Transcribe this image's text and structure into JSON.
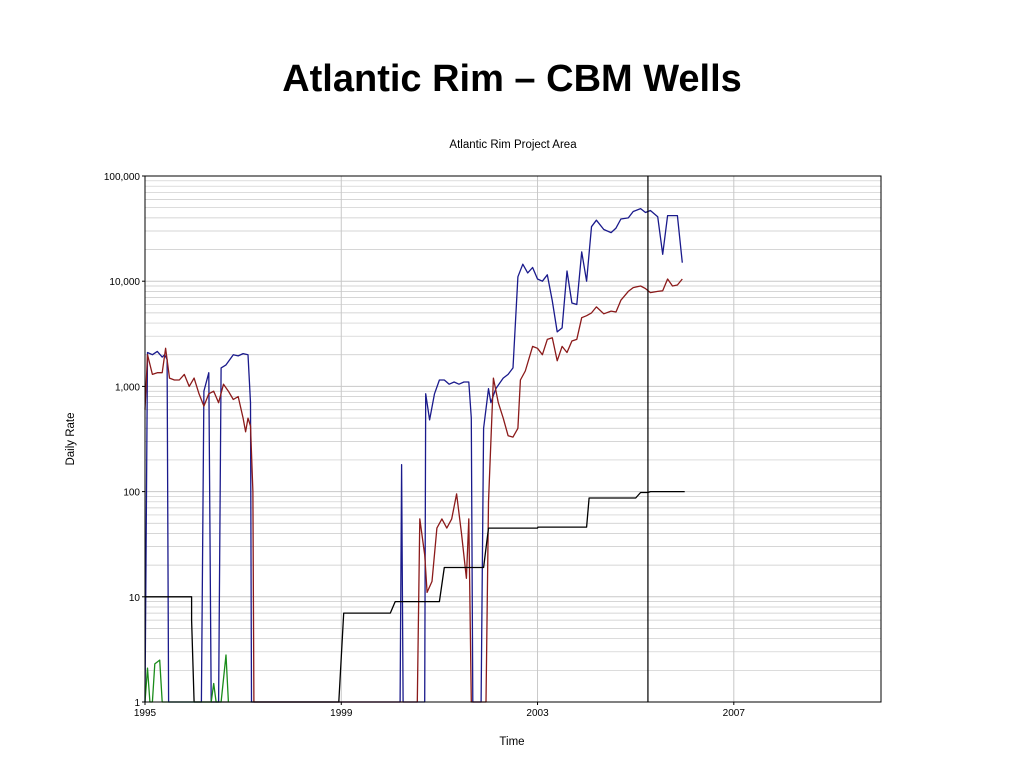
{
  "slide": {
    "title": "Atlantic Rim – CBM Wells"
  },
  "chart_data": {
    "type": "line",
    "title": "Atlantic Rim Project Area",
    "xlabel": "Time",
    "ylabel": "Daily Rate",
    "yscale": "log",
    "xlim": [
      1995,
      2010
    ],
    "ylim": [
      1,
      100000
    ],
    "xticks": [
      "1995",
      "1999",
      "2003",
      "2007"
    ],
    "yticks": [
      "1",
      "10",
      "100",
      "1,000",
      "10,000",
      "100,000"
    ],
    "grid": true,
    "legend": "none",
    "marker_line": {
      "x": 2005.25
    },
    "series": [
      {
        "color": "#1a1a8c",
        "points": [
          [
            1995.0,
            1
          ],
          [
            1995.05,
            2100
          ],
          [
            1995.15,
            2000
          ],
          [
            1995.25,
            2150
          ],
          [
            1995.35,
            1900
          ],
          [
            1995.4,
            2000
          ],
          [
            1995.45,
            1800
          ],
          [
            1995.48,
            1
          ],
          [
            1996.15,
            1
          ],
          [
            1996.2,
            900
          ],
          [
            1996.3,
            1350
          ],
          [
            1996.35,
            1
          ],
          [
            1996.5,
            1
          ],
          [
            1996.55,
            1500
          ],
          [
            1996.65,
            1600
          ],
          [
            1996.8,
            2000
          ],
          [
            1996.9,
            1950
          ],
          [
            1997.0,
            2050
          ],
          [
            1997.1,
            2000
          ],
          [
            1997.15,
            700
          ],
          [
            1997.17,
            1
          ],
          [
            2000.2,
            1
          ],
          [
            2000.23,
            180
          ],
          [
            2000.26,
            1
          ],
          [
            2000.7,
            1
          ],
          [
            2000.72,
            850
          ],
          [
            2000.8,
            480
          ],
          [
            2000.9,
            850
          ],
          [
            2001.0,
            1150
          ],
          [
            2001.1,
            1150
          ],
          [
            2001.2,
            1050
          ],
          [
            2001.3,
            1100
          ],
          [
            2001.4,
            1050
          ],
          [
            2001.5,
            1100
          ],
          [
            2001.6,
            1100
          ],
          [
            2001.65,
            500
          ],
          [
            2001.68,
            1
          ],
          [
            2001.85,
            1
          ],
          [
            2001.9,
            400
          ],
          [
            2002.0,
            950
          ],
          [
            2002.05,
            700
          ],
          [
            2002.15,
            950
          ],
          [
            2002.3,
            1200
          ],
          [
            2002.4,
            1300
          ],
          [
            2002.5,
            1500
          ],
          [
            2002.6,
            11000
          ],
          [
            2002.7,
            14500
          ],
          [
            2002.8,
            12000
          ],
          [
            2002.9,
            13500
          ],
          [
            2003.0,
            10500
          ],
          [
            2003.1,
            10000
          ],
          [
            2003.2,
            11500
          ],
          [
            2003.3,
            6500
          ],
          [
            2003.4,
            3300
          ],
          [
            2003.5,
            3600
          ],
          [
            2003.6,
            12500
          ],
          [
            2003.7,
            6200
          ],
          [
            2003.8,
            6000
          ],
          [
            2003.9,
            19000
          ],
          [
            2004.0,
            10000
          ],
          [
            2004.1,
            33000
          ],
          [
            2004.2,
            38000
          ],
          [
            2004.35,
            31000
          ],
          [
            2004.5,
            29000
          ],
          [
            2004.6,
            32000
          ],
          [
            2004.7,
            39000
          ],
          [
            2004.85,
            40000
          ],
          [
            2004.95,
            46000
          ],
          [
            2005.1,
            49000
          ],
          [
            2005.2,
            45000
          ],
          [
            2005.3,
            47000
          ],
          [
            2005.45,
            41000
          ],
          [
            2005.55,
            18000
          ],
          [
            2005.65,
            42000
          ],
          [
            2005.75,
            42000
          ],
          [
            2005.85,
            42000
          ],
          [
            2005.95,
            15000
          ]
        ]
      },
      {
        "color": "#8b1a1a",
        "points": [
          [
            1995.0,
            600
          ],
          [
            1995.05,
            2000
          ],
          [
            1995.15,
            1300
          ],
          [
            1995.25,
            1350
          ],
          [
            1995.35,
            1350
          ],
          [
            1995.42,
            2300
          ],
          [
            1995.5,
            1200
          ],
          [
            1995.6,
            1150
          ],
          [
            1995.7,
            1150
          ],
          [
            1995.8,
            1300
          ],
          [
            1995.9,
            1000
          ],
          [
            1996.0,
            1200
          ],
          [
            1996.1,
            850
          ],
          [
            1996.2,
            650
          ],
          [
            1996.3,
            850
          ],
          [
            1996.4,
            900
          ],
          [
            1996.5,
            700
          ],
          [
            1996.6,
            1050
          ],
          [
            1996.7,
            900
          ],
          [
            1996.8,
            750
          ],
          [
            1996.9,
            800
          ],
          [
            1997.0,
            500
          ],
          [
            1997.05,
            370
          ],
          [
            1997.1,
            500
          ],
          [
            1997.15,
            420
          ],
          [
            1997.2,
            100
          ],
          [
            1997.22,
            1
          ],
          [
            2000.55,
            1
          ],
          [
            2000.6,
            55
          ],
          [
            2000.7,
            25
          ],
          [
            2000.75,
            11
          ],
          [
            2000.85,
            14
          ],
          [
            2000.95,
            45
          ],
          [
            2001.05,
            55
          ],
          [
            2001.15,
            45
          ],
          [
            2001.25,
            55
          ],
          [
            2001.35,
            95
          ],
          [
            2001.45,
            40
          ],
          [
            2001.55,
            15
          ],
          [
            2001.6,
            55
          ],
          [
            2001.65,
            1
          ],
          [
            2001.95,
            1
          ],
          [
            2002.0,
            80
          ],
          [
            2002.1,
            1200
          ],
          [
            2002.2,
            700
          ],
          [
            2002.3,
            500
          ],
          [
            2002.4,
            340
          ],
          [
            2002.5,
            330
          ],
          [
            2002.6,
            400
          ],
          [
            2002.65,
            1150
          ],
          [
            2002.75,
            1400
          ],
          [
            2002.9,
            2400
          ],
          [
            2003.0,
            2300
          ],
          [
            2003.1,
            2000
          ],
          [
            2003.2,
            2800
          ],
          [
            2003.3,
            2900
          ],
          [
            2003.4,
            1750
          ],
          [
            2003.5,
            2400
          ],
          [
            2003.6,
            2100
          ],
          [
            2003.7,
            2700
          ],
          [
            2003.8,
            2800
          ],
          [
            2003.9,
            4500
          ],
          [
            2004.0,
            4700
          ],
          [
            2004.1,
            5000
          ],
          [
            2004.2,
            5700
          ],
          [
            2004.35,
            4900
          ],
          [
            2004.5,
            5200
          ],
          [
            2004.6,
            5100
          ],
          [
            2004.7,
            6600
          ],
          [
            2004.85,
            8000
          ],
          [
            2004.95,
            8700
          ],
          [
            2005.1,
            9000
          ],
          [
            2005.2,
            8500
          ],
          [
            2005.3,
            7800
          ],
          [
            2005.45,
            8000
          ],
          [
            2005.55,
            8100
          ],
          [
            2005.65,
            10500
          ],
          [
            2005.75,
            9000
          ],
          [
            2005.85,
            9200
          ],
          [
            2005.95,
            10500
          ]
        ]
      },
      {
        "color": "#000000",
        "points": [
          [
            1995.0,
            10
          ],
          [
            1995.95,
            10
          ],
          [
            1995.95,
            6
          ],
          [
            1996.0,
            1
          ],
          [
            1998.95,
            1
          ],
          [
            1999.05,
            7
          ],
          [
            2000.0,
            7
          ],
          [
            2000.1,
            9
          ],
          [
            2001.0,
            9
          ],
          [
            2001.1,
            19
          ],
          [
            2001.9,
            19
          ],
          [
            2002.0,
            45
          ],
          [
            2003.0,
            45
          ],
          [
            2003.01,
            46
          ],
          [
            2004.0,
            46
          ],
          [
            2004.05,
            87
          ],
          [
            2005.0,
            87
          ],
          [
            2005.1,
            98
          ],
          [
            2005.25,
            98
          ],
          [
            2005.3,
            100
          ],
          [
            2006.0,
            100
          ]
        ]
      },
      {
        "color": "#1a8c1a",
        "points": [
          [
            1995.0,
            1
          ],
          [
            1995.05,
            2.1
          ],
          [
            1995.1,
            1
          ],
          [
            1995.15,
            1
          ],
          [
            1995.2,
            2.3
          ],
          [
            1995.3,
            2.5
          ],
          [
            1995.35,
            1
          ],
          [
            1996.35,
            1
          ],
          [
            1996.4,
            1.5
          ],
          [
            1996.45,
            1
          ],
          [
            1996.55,
            1
          ],
          [
            1996.65,
            2.8
          ],
          [
            1996.7,
            1
          ]
        ]
      }
    ]
  }
}
